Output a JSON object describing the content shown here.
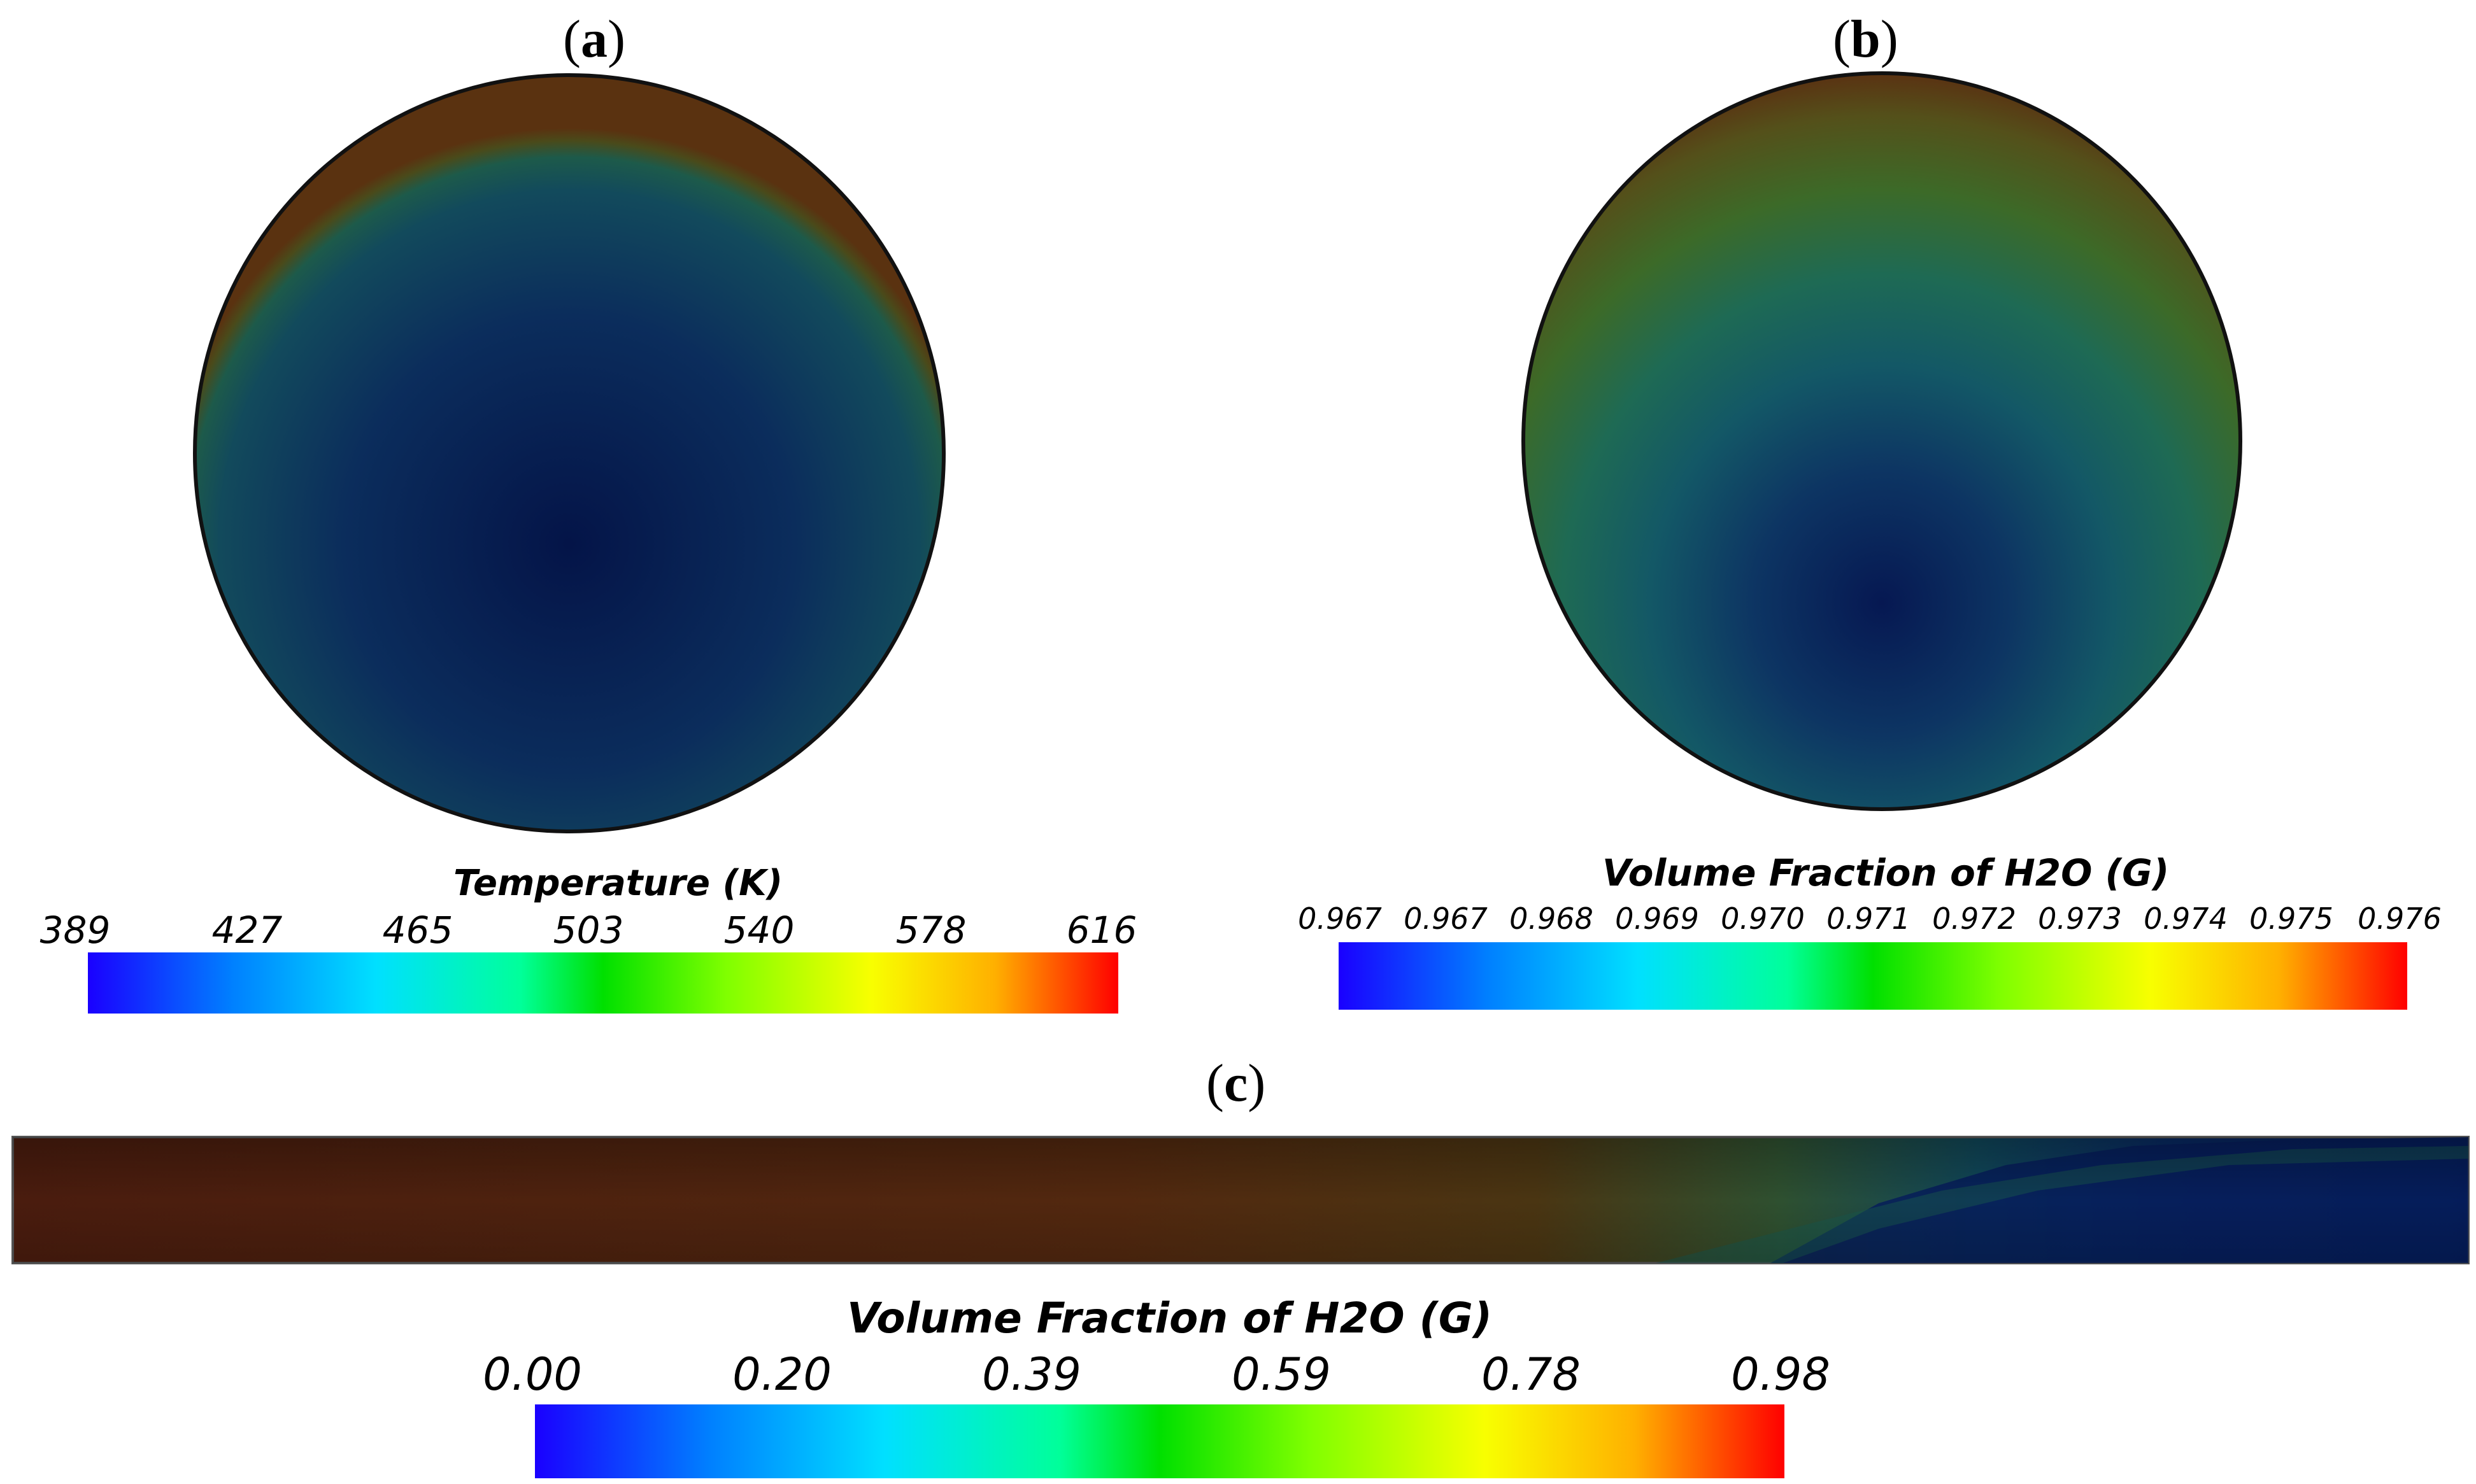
{
  "panels": {
    "a": {
      "label": "a",
      "colorbar": {
        "title": "Temperature (K)",
        "ticks": [
          "389",
          "427",
          "465",
          "503",
          "540",
          "578",
          "616"
        ]
      }
    },
    "b": {
      "label": "b",
      "colorbar": {
        "title": "Volume Fraction of H2O (G)",
        "ticks": [
          "0.967",
          "0.967",
          "0.968",
          "0.969",
          "0.970",
          "0.971",
          "0.972",
          "0.973",
          "0.974",
          "0.975",
          "0.976"
        ]
      }
    },
    "c": {
      "label": "c",
      "colorbar": {
        "title": "Volume Fraction of H2O (G)",
        "ticks": [
          "0.00",
          "0.20",
          "0.39",
          "0.59",
          "0.78",
          "0.98"
        ]
      }
    }
  },
  "colors": {
    "colormap": [
      "#1a00ff",
      "#0080ff",
      "#00e0ff",
      "#00ff9a",
      "#00e000",
      "#80ff00",
      "#f8ff00",
      "#ffb000",
      "#ff0000"
    ],
    "contour_dark_blue": "#05174f",
    "contour_teal": "#12544f",
    "contour_green": "#3d5a1c",
    "contour_brown": "#4a2410"
  }
}
